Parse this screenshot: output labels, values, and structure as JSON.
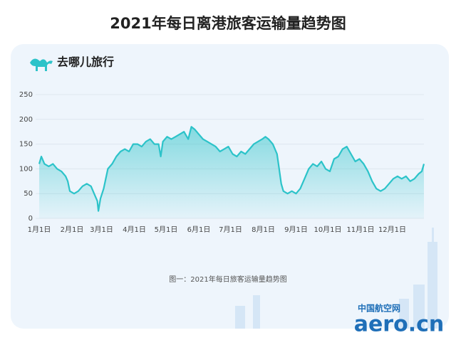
{
  "title": "2021年每日离港旅客运输量趋势图",
  "brand": "去哪儿旅行",
  "caption": "图一：2021年每日旅客运输量趋势图",
  "watermark": {
    "site": "中国航空网",
    "domain": "aero.cn"
  },
  "chart_data": {
    "type": "area",
    "color": "#2cc3c9",
    "grid": true,
    "x": [
      1,
      3,
      6,
      10,
      14,
      18,
      22,
      26,
      28,
      30,
      34,
      38,
      42,
      46,
      50,
      53,
      56,
      57,
      59,
      62,
      66,
      70,
      74,
      78,
      82,
      86,
      90,
      94,
      98,
      102,
      106,
      110,
      114,
      116,
      118,
      122,
      126,
      130,
      134,
      138,
      142,
      145,
      148,
      152,
      156,
      160,
      164,
      168,
      172,
      176,
      180,
      184,
      188,
      192,
      196,
      200,
      204,
      208,
      212,
      215,
      218,
      222,
      226,
      228,
      230,
      232,
      236,
      240,
      244,
      248,
      252,
      256,
      260,
      264,
      268,
      272,
      276,
      280,
      284,
      288,
      292,
      296,
      300,
      304,
      308,
      312,
      316,
      320,
      324,
      328,
      332,
      336,
      340,
      344,
      348,
      352,
      356,
      360,
      363,
      365
    ],
    "values": [
      110,
      125,
      110,
      105,
      110,
      100,
      95,
      85,
      75,
      55,
      50,
      55,
      65,
      70,
      65,
      50,
      35,
      15,
      40,
      60,
      100,
      110,
      125,
      135,
      140,
      135,
      150,
      150,
      145,
      155,
      160,
      150,
      150,
      125,
      155,
      165,
      160,
      165,
      170,
      175,
      160,
      185,
      180,
      170,
      160,
      155,
      150,
      145,
      135,
      140,
      145,
      130,
      125,
      135,
      130,
      140,
      150,
      155,
      160,
      165,
      160,
      150,
      130,
      100,
      70,
      55,
      50,
      55,
      50,
      60,
      80,
      100,
      110,
      105,
      115,
      100,
      95,
      120,
      125,
      140,
      145,
      130,
      115,
      120,
      110,
      95,
      75,
      60,
      55,
      60,
      70,
      80,
      85,
      80,
      85,
      75,
      80,
      90,
      95,
      110
    ],
    "xlim": [
      1,
      365
    ],
    "xticks": [
      {
        "value": 1,
        "label": "1月1日"
      },
      {
        "value": 32,
        "label": "2月1日"
      },
      {
        "value": 60,
        "label": "3月1日"
      },
      {
        "value": 91,
        "label": "4月1日"
      },
      {
        "value": 121,
        "label": "5月1日"
      },
      {
        "value": 152,
        "label": "6月1日"
      },
      {
        "value": 182,
        "label": "7月1日"
      },
      {
        "value": 213,
        "label": "8月1日"
      },
      {
        "value": 244,
        "label": "9月1日"
      },
      {
        "value": 274,
        "label": "10月1日"
      },
      {
        "value": 305,
        "label": "11月1日"
      },
      {
        "value": 335,
        "label": "12月1日"
      }
    ],
    "ylim": [
      0,
      250
    ],
    "yticks": [
      0,
      50,
      100,
      150,
      200,
      250
    ]
  }
}
